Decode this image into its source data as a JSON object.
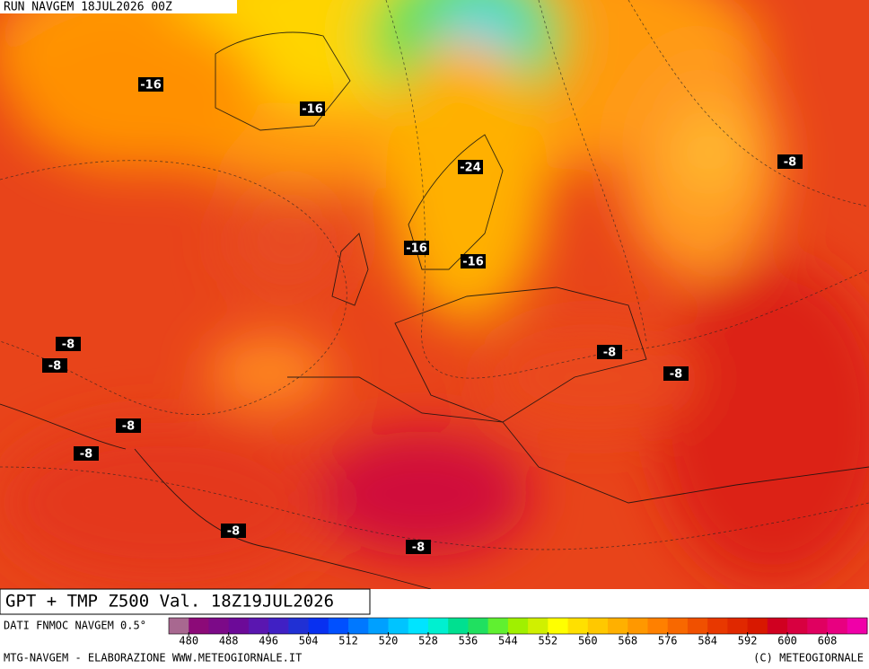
{
  "header": {
    "run": "RUN NAVGEM 18JUL2026 00Z"
  },
  "map": {
    "contour_labels": [
      "-16",
      "-16",
      "-24",
      "-16",
      "-16",
      "-8",
      "-8",
      "-8",
      "-8",
      "-8",
      "-8",
      "-8",
      "-8",
      "-8"
    ]
  },
  "caption": "GPT + TMP Z500 Val. 18Z19JUL2026",
  "legend": {
    "source": "DATI FNMOC NAVGEM 0.5°",
    "colors": [
      "#a86890",
      "#8c0a78",
      "#7c0a88",
      "#6c0a98",
      "#5a16b0",
      "#4020c4",
      "#2030d4",
      "#0830f0",
      "#0050ff",
      "#0078ff",
      "#00a0ff",
      "#00c4ff",
      "#00e4ff",
      "#00f0d0",
      "#00e090",
      "#20e060",
      "#60f030",
      "#a0f000",
      "#d0f000",
      "#ffff00",
      "#ffe000",
      "#ffc800",
      "#ffb000",
      "#ff9800",
      "#ff8000",
      "#f86800",
      "#f05000",
      "#e83800",
      "#e02800",
      "#d81800",
      "#d00020",
      "#d80040",
      "#e00060",
      "#e80080",
      "#f000a8"
    ],
    "ticks": [
      480,
      488,
      496,
      504,
      512,
      520,
      528,
      536,
      544,
      552,
      560,
      568,
      576,
      584,
      592,
      600,
      608
    ]
  },
  "footer": {
    "left": "MTG-NAVGEM - ELABORAZIONE WWW.METEOGIORNALE.IT",
    "right": "(C) METEOGIORNALE"
  }
}
